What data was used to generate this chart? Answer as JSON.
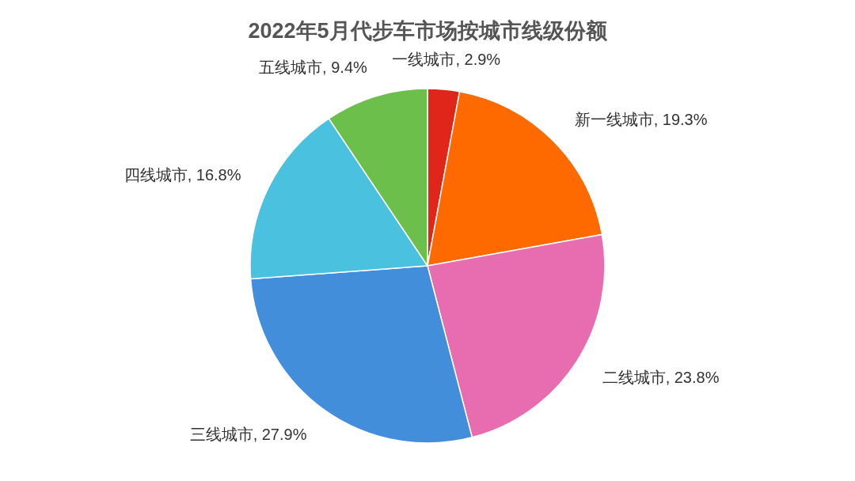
{
  "chart_data": {
    "type": "pie",
    "title": "2022年5月代步车市场按城市线级份额",
    "categories": [
      "一线城市",
      "新一线城市",
      "二线城市",
      "三线城市",
      "四线城市",
      "五线城市"
    ],
    "values": [
      2.9,
      19.3,
      23.8,
      27.9,
      16.8,
      9.4
    ],
    "value_labels": [
      "2.9%",
      "19.3%",
      "23.8%",
      "27.9%",
      "16.8%",
      "9.4%"
    ],
    "colors": [
      "#e0261b",
      "#ff6a00",
      "#e86cb0",
      "#428edb",
      "#4bc1e0",
      "#6cbf4b"
    ]
  }
}
